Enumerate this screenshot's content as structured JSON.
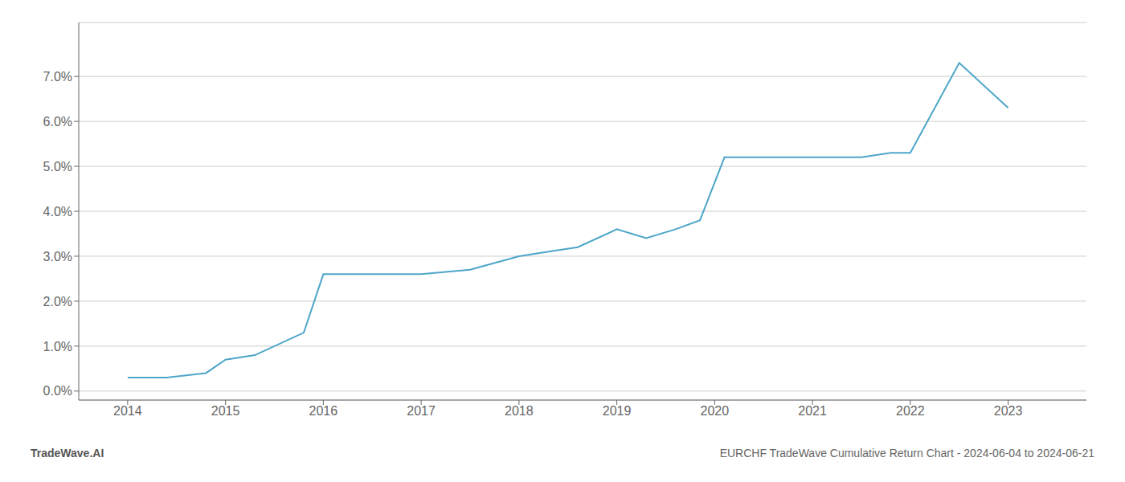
{
  "chart_data": {
    "type": "line",
    "title": "EURCHF TradeWave Cumulative Return Chart - 2024-06-04 to 2024-06-21",
    "annotations": [
      "TradeWave.AI"
    ],
    "x": [
      2014.0,
      2014.4,
      2014.8,
      2015.0,
      2015.3,
      2015.8,
      2016.0,
      2016.5,
      2017.0,
      2017.5,
      2018.0,
      2018.3,
      2018.6,
      2019.0,
      2019.3,
      2019.6,
      2019.85,
      2020.1,
      2020.5,
      2021.0,
      2021.5,
      2021.8,
      2022.0,
      2022.5,
      2023.0
    ],
    "values": [
      0.003,
      0.003,
      0.004,
      0.007,
      0.008,
      0.013,
      0.026,
      0.026,
      0.026,
      0.027,
      0.03,
      0.031,
      0.032,
      0.036,
      0.034,
      0.036,
      0.038,
      0.052,
      0.052,
      0.052,
      0.052,
      0.053,
      0.053,
      0.073,
      0.063
    ],
    "color": "#4da6c8",
    "xlim": [
      2013.5,
      2023.8
    ],
    "xticks": [
      2014,
      2015,
      2016,
      2017,
      2018,
      2019,
      2020,
      2021,
      2022,
      2023
    ],
    "ylim": [
      -0.002,
      0.082
    ],
    "yticks": [
      {
        "value": 0.0,
        "label": "0.0%"
      },
      {
        "value": 0.01,
        "label": "1.0%"
      },
      {
        "value": 0.02,
        "label": "2.0%"
      },
      {
        "value": 0.03,
        "label": "3.0%"
      },
      {
        "value": 0.04,
        "label": "4.0%"
      },
      {
        "value": 0.05,
        "label": "5.0%"
      },
      {
        "value": 0.06,
        "label": "6.0%"
      },
      {
        "value": 0.07,
        "label": "7.0%"
      }
    ],
    "grid": "y"
  }
}
